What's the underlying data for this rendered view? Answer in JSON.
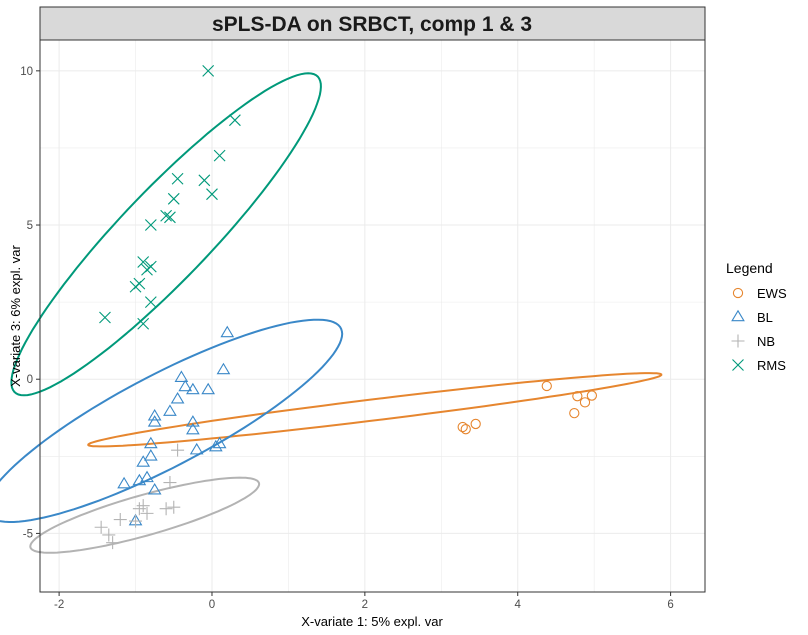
{
  "chart_data": {
    "type": "scatter",
    "title": "sPLS-DA on SRBCT, comp 1 & 3",
    "xlabel": "X-variate 1: 5% expl. var",
    "ylabel": "X-variate 3: 6% expl. var",
    "xlim": [
      -2.25,
      6.45
    ],
    "ylim": [
      -6.9,
      11.0
    ],
    "xticks": [
      -2,
      0,
      2,
      4,
      6
    ],
    "yticks": [
      -5,
      0,
      5,
      10
    ],
    "grid": true,
    "legend": {
      "title": "Legend",
      "placement": "right"
    },
    "series": [
      {
        "name": "EWS",
        "marker": "circle",
        "color": "#E6862F",
        "ellipse": {
          "cx": 2.13,
          "cy": -0.99,
          "a": 3.92,
          "b": 0.33,
          "angle_deg": 17
        },
        "points": [
          [
            3.28,
            -1.55
          ],
          [
            3.32,
            -1.62
          ],
          [
            3.45,
            -1.45
          ],
          [
            4.38,
            -0.22
          ],
          [
            4.78,
            -0.55
          ],
          [
            4.88,
            -0.75
          ],
          [
            4.97,
            -0.53
          ],
          [
            4.74,
            -1.1
          ]
        ]
      },
      {
        "name": "BL",
        "marker": "triangle",
        "color": "#3A88C8",
        "ellipse": {
          "cx": -0.63,
          "cy": -1.35,
          "a": 3.9,
          "b": 1.0,
          "angle_deg": 56
        },
        "points": [
          [
            -1.15,
            -3.4
          ],
          [
            -0.85,
            -3.2
          ],
          [
            -0.95,
            -3.3
          ],
          [
            -0.75,
            -3.6
          ],
          [
            -0.9,
            -2.7
          ],
          [
            -0.8,
            -2.5
          ],
          [
            -0.8,
            -2.1
          ],
          [
            -0.75,
            -1.2
          ],
          [
            -0.75,
            -1.4
          ],
          [
            -0.55,
            -1.05
          ],
          [
            -0.45,
            -0.65
          ],
          [
            -0.4,
            0.05
          ],
          [
            -0.35,
            -0.25
          ],
          [
            -0.25,
            -1.4
          ],
          [
            -0.25,
            -1.65
          ],
          [
            -0.2,
            -2.3
          ],
          [
            -0.25,
            -0.35
          ],
          [
            -0.05,
            -0.35
          ],
          [
            0.05,
            -2.2
          ],
          [
            0.1,
            -2.1
          ],
          [
            0.15,
            0.3
          ],
          [
            0.2,
            1.5
          ],
          [
            -1.0,
            -4.6
          ]
        ]
      },
      {
        "name": "NB",
        "marker": "plus",
        "color": "#B3B3B3",
        "ellipse": {
          "cx": -0.88,
          "cy": -4.41,
          "a": 1.85,
          "b": 0.55,
          "angle_deg": 38
        },
        "points": [
          [
            -1.45,
            -4.8
          ],
          [
            -1.35,
            -5.05
          ],
          [
            -1.3,
            -5.3
          ],
          [
            -1.2,
            -4.55
          ],
          [
            -1.0,
            -4.6
          ],
          [
            -0.95,
            -4.2
          ],
          [
            -0.9,
            -4.1
          ],
          [
            -0.85,
            -4.35
          ],
          [
            -0.6,
            -4.2
          ],
          [
            -0.55,
            -3.35
          ],
          [
            -0.5,
            -4.15
          ],
          [
            -0.45,
            -2.3
          ]
        ]
      },
      {
        "name": "RMS",
        "marker": "x",
        "color": "#00997A",
        "ellipse": {
          "cx": -0.6,
          "cy": 4.7,
          "a": 5.55,
          "b": 0.75,
          "angle_deg": 70
        },
        "points": [
          [
            -1.4,
            2.0
          ],
          [
            -1.0,
            3.0
          ],
          [
            -0.95,
            3.1
          ],
          [
            -0.9,
            3.8
          ],
          [
            -0.85,
            3.55
          ],
          [
            -0.8,
            3.65
          ],
          [
            -0.8,
            2.5
          ],
          [
            -0.9,
            1.8
          ],
          [
            -0.8,
            5.0
          ],
          [
            -0.6,
            5.3
          ],
          [
            -0.55,
            5.25
          ],
          [
            -0.5,
            5.85
          ],
          [
            -0.45,
            6.5
          ],
          [
            -0.1,
            6.45
          ],
          [
            -0.05,
            10.0
          ],
          [
            0.0,
            6.0
          ],
          [
            0.1,
            7.25
          ],
          [
            0.3,
            8.4
          ]
        ]
      }
    ]
  }
}
